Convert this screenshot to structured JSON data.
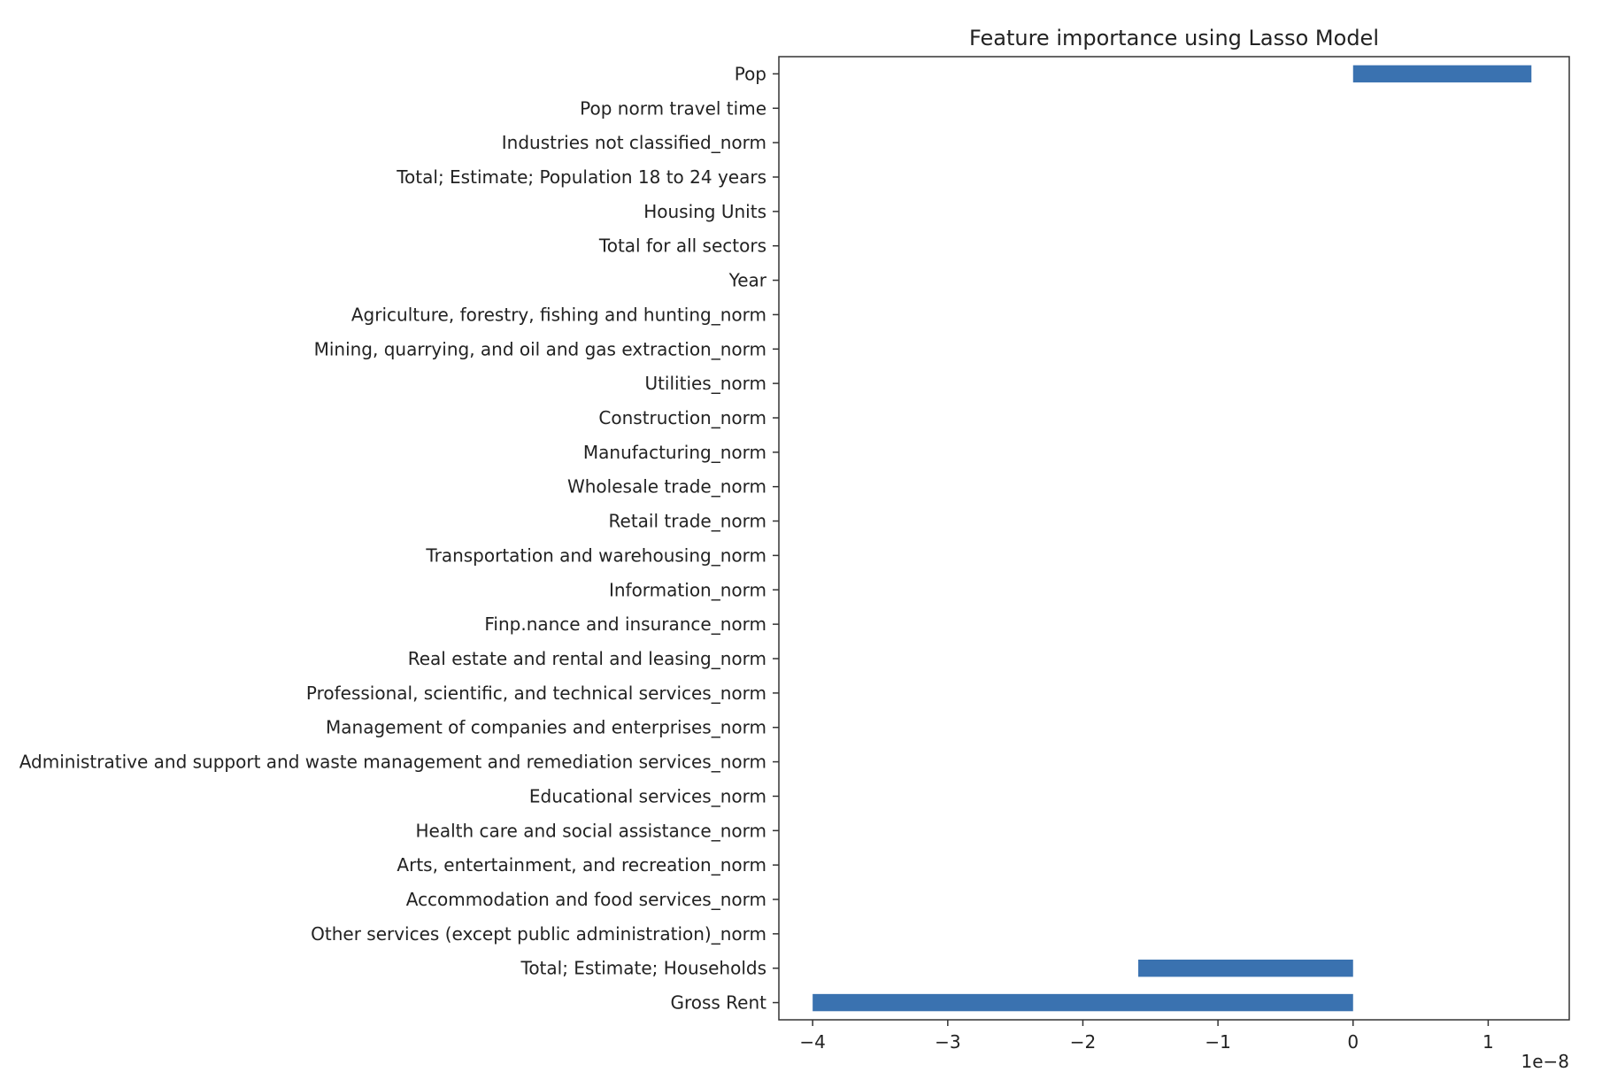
{
  "chart_data": {
    "type": "bar",
    "orientation": "horizontal",
    "title": "Feature importance using Lasso Model",
    "xlabel": "",
    "ylabel": "",
    "x_scale_label": "1e−8",
    "xlim": [
      -4.25,
      1.6
    ],
    "x_ticks": [
      -4,
      -3,
      -2,
      -1,
      0,
      1
    ],
    "x_tick_labels": [
      "−4",
      "−3",
      "−2",
      "−1",
      "0",
      "1"
    ],
    "bar_color": "#3a72b0",
    "grid": false,
    "categories": [
      "Pop",
      "Pop norm travel time",
      "Industries not classified_norm",
      "Total; Estimate; Population 18 to 24 years",
      "Housing Units",
      "Total for all sectors",
      "Year",
      "Agriculture, forestry, fishing and hunting_norm",
      "Mining, quarrying, and oil and gas extraction_norm",
      "Utilities_norm",
      "Construction_norm",
      "Manufacturing_norm",
      "Wholesale trade_norm",
      "Retail trade_norm",
      "Transportation and warehousing_norm",
      "Information_norm",
      "Finp.nance and insurance_norm",
      "Real estate and rental and leasing_norm",
      "Professional, scientific, and technical services_norm",
      "Management of companies and enterprises_norm",
      "Administrative and support and waste management and remediation services_norm",
      "Educational services_norm",
      "Health care and social assistance_norm",
      "Arts, entertainment, and recreation_norm",
      "Accommodation and food services_norm",
      "Other services (except public administration)_norm",
      "Total; Estimate; Households",
      "Gross Rent"
    ],
    "values": [
      1.32,
      0,
      0,
      0,
      0,
      0,
      0,
      0,
      0,
      0,
      0,
      0,
      0,
      0,
      0,
      0,
      0,
      0,
      0,
      0,
      0,
      0,
      0,
      0,
      0,
      0,
      -1.59,
      -4.0
    ]
  }
}
